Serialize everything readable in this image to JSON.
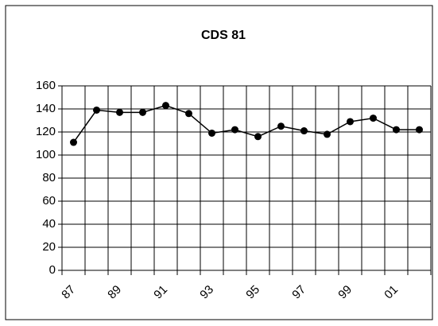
{
  "chart_data": {
    "type": "line",
    "title": "CDS 81",
    "categories": [
      "87",
      null,
      "89",
      null,
      "91",
      null,
      "93",
      null,
      "95",
      null,
      "97",
      null,
      "99",
      null,
      "01",
      null
    ],
    "values": [
      111,
      139,
      137,
      137,
      143,
      136,
      119,
      122,
      116,
      125,
      121,
      118,
      129,
      132,
      122,
      122
    ],
    "color": "#000000",
    "ylim": [
      0,
      160
    ],
    "yticks": [
      0,
      20,
      40,
      60,
      80,
      100,
      120,
      140,
      160
    ],
    "grid": true
  }
}
